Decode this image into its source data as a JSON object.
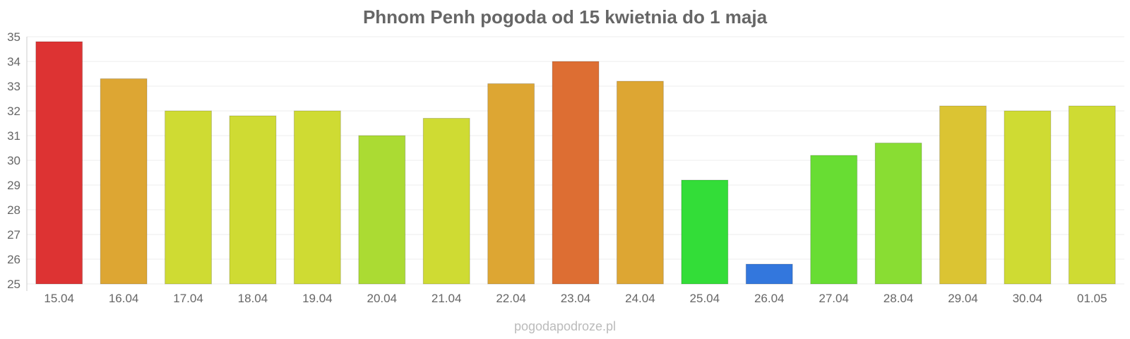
{
  "chart_data": {
    "type": "bar",
    "title": "Phnom Penh pogoda od 15 kwietnia do 1 maja",
    "xlabel": "",
    "ylabel": "",
    "ylim": [
      25,
      35
    ],
    "yticks": [
      25,
      26,
      27,
      28,
      29,
      30,
      31,
      32,
      33,
      34,
      35
    ],
    "grid": true,
    "legend": "none",
    "categories": [
      "15.04",
      "16.04",
      "17.04",
      "18.04",
      "19.04",
      "20.04",
      "21.04",
      "22.04",
      "23.04",
      "24.04",
      "25.04",
      "26.04",
      "27.04",
      "28.04",
      "29.04",
      "30.04",
      "01.05"
    ],
    "values": [
      34.8,
      33.3,
      32.0,
      31.8,
      32.0,
      31.0,
      31.7,
      33.1,
      34.0,
      33.2,
      29.2,
      25.8,
      30.2,
      30.7,
      32.2,
      32.0,
      32.2
    ],
    "colors": [
      "#dd3333",
      "#dda633",
      "#cfdb33",
      "#cfdb33",
      "#cfdb33",
      "#abdb33",
      "#cfdb33",
      "#dda633",
      "#dd6e33",
      "#dda633",
      "#33dd38",
      "#3377dd",
      "#68dd33",
      "#89dd33",
      "#dbc433",
      "#cfdb33",
      "#cfdb33"
    ]
  },
  "footer": {
    "source": "pogodapodroze.pl"
  }
}
